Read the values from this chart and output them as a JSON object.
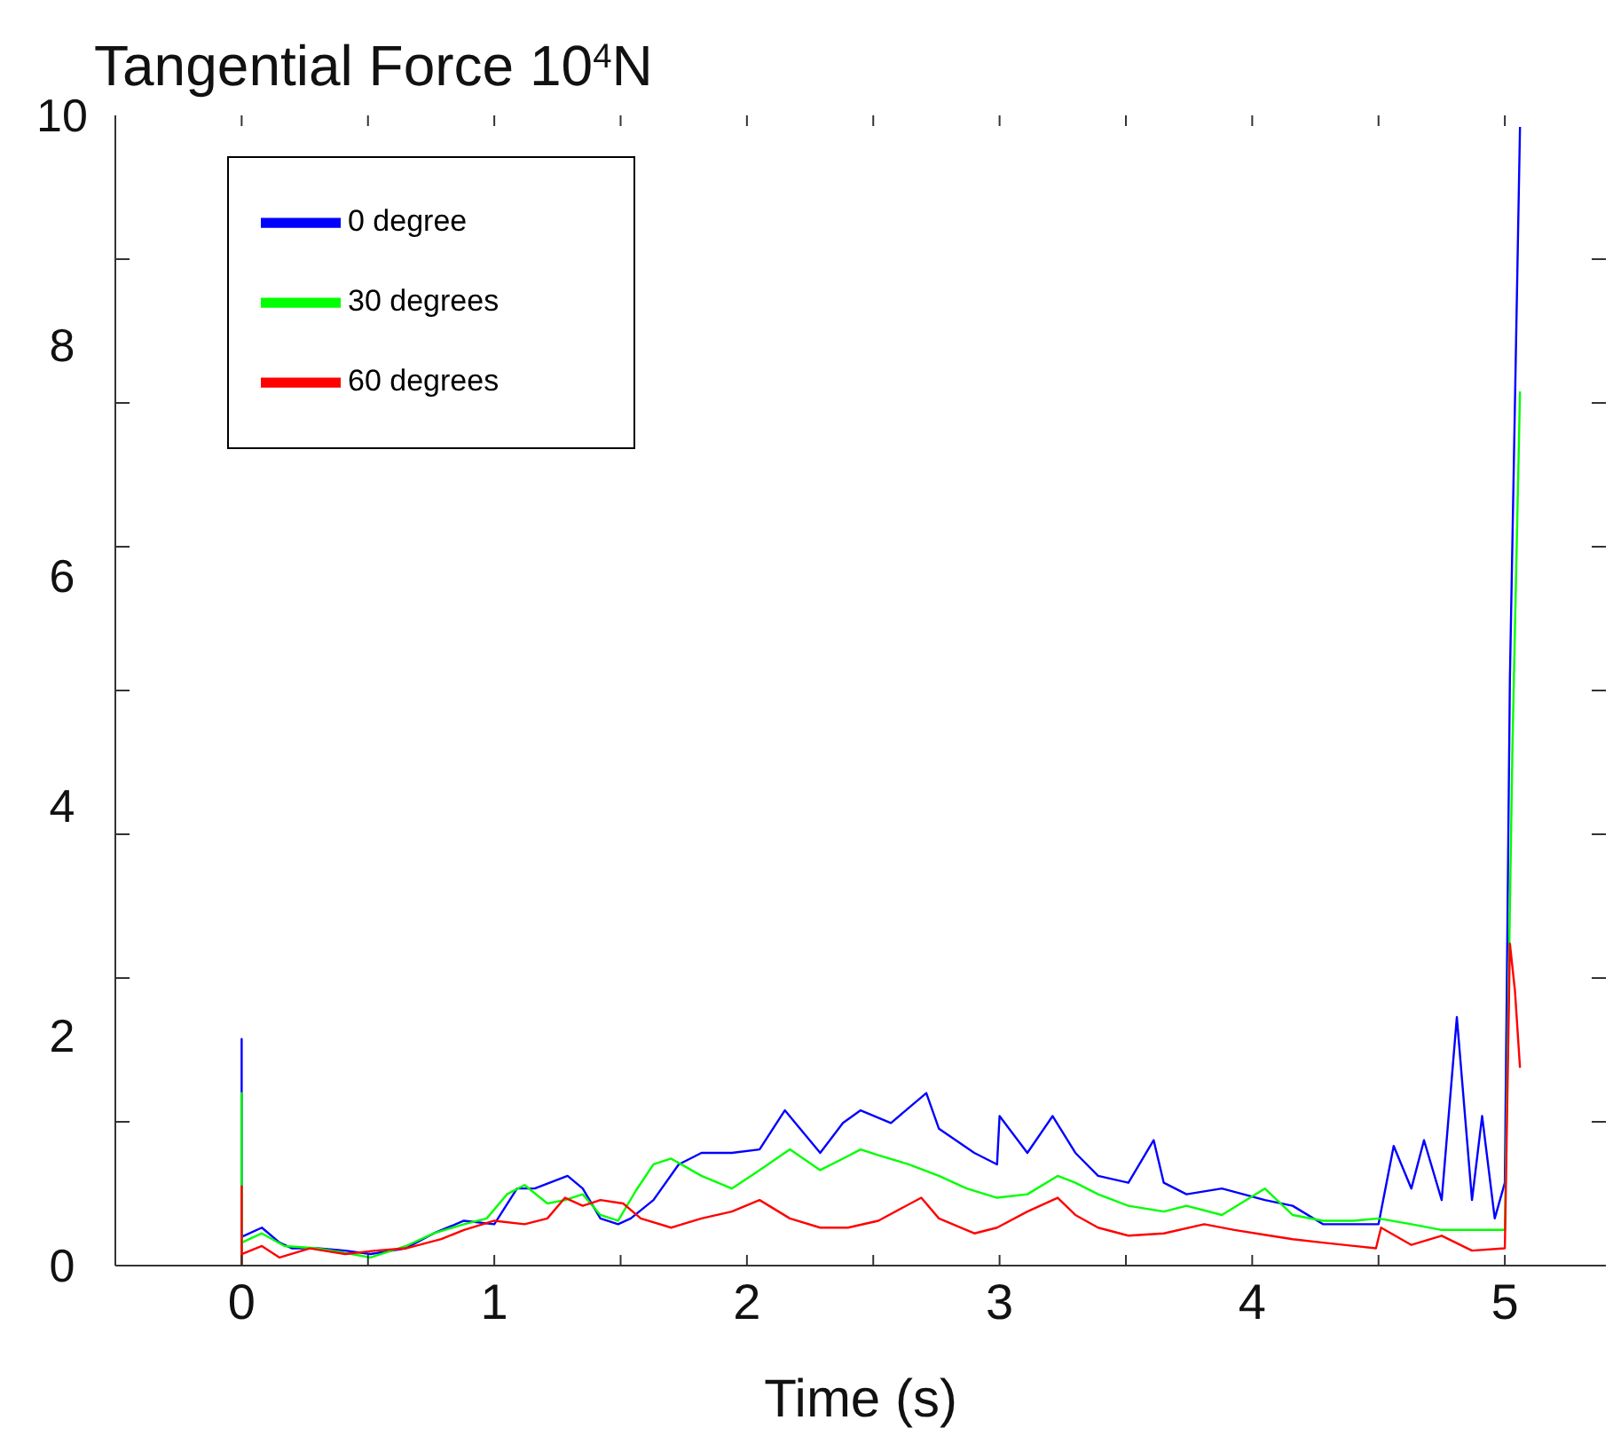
{
  "chart_data": {
    "type": "line",
    "title": "Tangential Force 10$^{4}$N",
    "xlabel": "Time (s)",
    "xlim": [
      -0.5,
      5.4
    ],
    "ylim": [
      0,
      10
    ],
    "xticks": [
      0,
      {
        "value": 0.5,
        "label": null
      },
      1,
      {
        "value": 1.5,
        "label": null
      },
      2,
      {
        "value": 2.5,
        "label": null
      },
      3,
      {
        "value": 3.5,
        "label": null
      },
      4,
      {
        "value": 4.5,
        "label": null
      },
      5
    ],
    "yticks": [
      0,
      {
        "value": 1.25,
        "label": null
      },
      2,
      {
        "value": 2.5,
        "label": null
      },
      {
        "value": 3.75,
        "label": null
      },
      4,
      {
        "value": 5,
        "label": null
      },
      6,
      {
        "value": 6.25,
        "label": null
      },
      {
        "value": 7.5,
        "label": null
      },
      8,
      {
        "value": 8.75,
        "label": null
      },
      10
    ],
    "legend": "top left",
    "marker": "none",
    "line_style": "solid",
    "series": [
      {
        "name": "0 degree",
        "color": "#0000ff",
        "x": [
          0,
          0,
          0,
          0.08,
          0.15,
          0.2,
          0.3,
          0.41,
          0.51,
          0.65,
          0.76,
          0.88,
          1.0,
          1.09,
          1.16,
          1.29,
          1.35,
          1.42,
          1.49,
          1.54,
          1.63,
          1.73,
          1.82,
          1.94,
          2.05,
          2.15,
          2.29,
          2.38,
          2.45,
          2.57,
          2.71,
          2.76,
          2.9,
          2.99,
          3.0,
          3.11,
          3.21,
          3.3,
          3.39,
          3.51,
          3.61,
          3.65,
          3.74,
          3.88,
          4.05,
          4.16,
          4.28,
          4.4,
          4.5,
          4.56,
          4.63,
          4.68,
          4.75,
          4.81,
          4.87,
          4.91,
          4.96,
          5.0,
          5.02,
          5.06
        ],
        "values": [
          0,
          1.97,
          0.25,
          0.33,
          0.2,
          0.15,
          0.15,
          0.13,
          0.1,
          0.15,
          0.28,
          0.39,
          0.36,
          0.67,
          0.67,
          0.78,
          0.67,
          0.41,
          0.36,
          0.41,
          0.57,
          0.88,
          0.98,
          0.98,
          1.01,
          1.35,
          0.98,
          1.24,
          1.35,
          1.24,
          1.5,
          1.19,
          0.98,
          0.88,
          1.3,
          0.98,
          1.3,
          0.98,
          0.78,
          0.72,
          1.09,
          0.72,
          0.62,
          0.67,
          0.57,
          0.52,
          0.36,
          0.36,
          0.36,
          1.04,
          0.67,
          1.09,
          0.57,
          2.16,
          0.57,
          1.3,
          0.41,
          0.72,
          5.1,
          9.9
        ]
      },
      {
        "name": "30 degrees",
        "color": "#00ff00",
        "x": [
          0,
          0,
          0,
          0.08,
          0.17,
          0.3,
          0.41,
          0.51,
          0.65,
          0.76,
          0.88,
          0.97,
          1.05,
          1.12,
          1.21,
          1.28,
          1.35,
          1.42,
          1.49,
          1.56,
          1.63,
          1.7,
          1.82,
          1.94,
          2.05,
          2.17,
          2.29,
          2.38,
          2.45,
          2.52,
          2.64,
          2.76,
          2.87,
          2.99,
          3.11,
          3.23,
          3.3,
          3.39,
          3.51,
          3.65,
          3.74,
          3.88,
          4.05,
          4.16,
          4.28,
          4.4,
          4.5,
          4.63,
          4.75,
          4.87,
          5.0,
          5.03,
          5.06
        ],
        "values": [
          0,
          1.5,
          0.2,
          0.28,
          0.17,
          0.15,
          0.11,
          0.07,
          0.17,
          0.28,
          0.36,
          0.41,
          0.62,
          0.7,
          0.54,
          0.57,
          0.62,
          0.44,
          0.39,
          0.65,
          0.88,
          0.93,
          0.78,
          0.67,
          0.83,
          1.01,
          0.83,
          0.93,
          1.01,
          0.96,
          0.88,
          0.78,
          0.67,
          0.59,
          0.62,
          0.78,
          0.72,
          0.62,
          0.52,
          0.47,
          0.52,
          0.44,
          0.67,
          0.44,
          0.39,
          0.39,
          0.41,
          0.36,
          0.31,
          0.31,
          0.31,
          4.5,
          7.6
        ]
      },
      {
        "name": "60 degrees",
        "color": "#ff0000",
        "x": [
          0,
          0,
          0,
          0.08,
          0.15,
          0.27,
          0.41,
          0.53,
          0.65,
          0.79,
          0.88,
          1.0,
          1.12,
          1.21,
          1.28,
          1.35,
          1.42,
          1.51,
          1.58,
          1.7,
          1.82,
          1.94,
          2.05,
          2.17,
          2.29,
          2.4,
          2.52,
          2.69,
          2.76,
          2.9,
          2.99,
          3.11,
          3.23,
          3.3,
          3.39,
          3.51,
          3.65,
          3.81,
          3.93,
          4.07,
          4.16,
          4.28,
          4.49,
          4.51,
          4.63,
          4.75,
          4.87,
          5.0,
          5.02,
          5.04,
          5.06
        ],
        "values": [
          0,
          0.69,
          0.1,
          0.17,
          0.07,
          0.15,
          0.1,
          0.13,
          0.15,
          0.23,
          0.31,
          0.39,
          0.36,
          0.41,
          0.59,
          0.52,
          0.57,
          0.54,
          0.41,
          0.33,
          0.41,
          0.47,
          0.57,
          0.41,
          0.33,
          0.33,
          0.39,
          0.59,
          0.41,
          0.28,
          0.33,
          0.47,
          0.59,
          0.44,
          0.33,
          0.26,
          0.28,
          0.36,
          0.31,
          0.26,
          0.23,
          0.2,
          0.15,
          0.33,
          0.18,
          0.26,
          0.13,
          0.15,
          2.8,
          2.39,
          1.72
        ]
      }
    ]
  }
}
